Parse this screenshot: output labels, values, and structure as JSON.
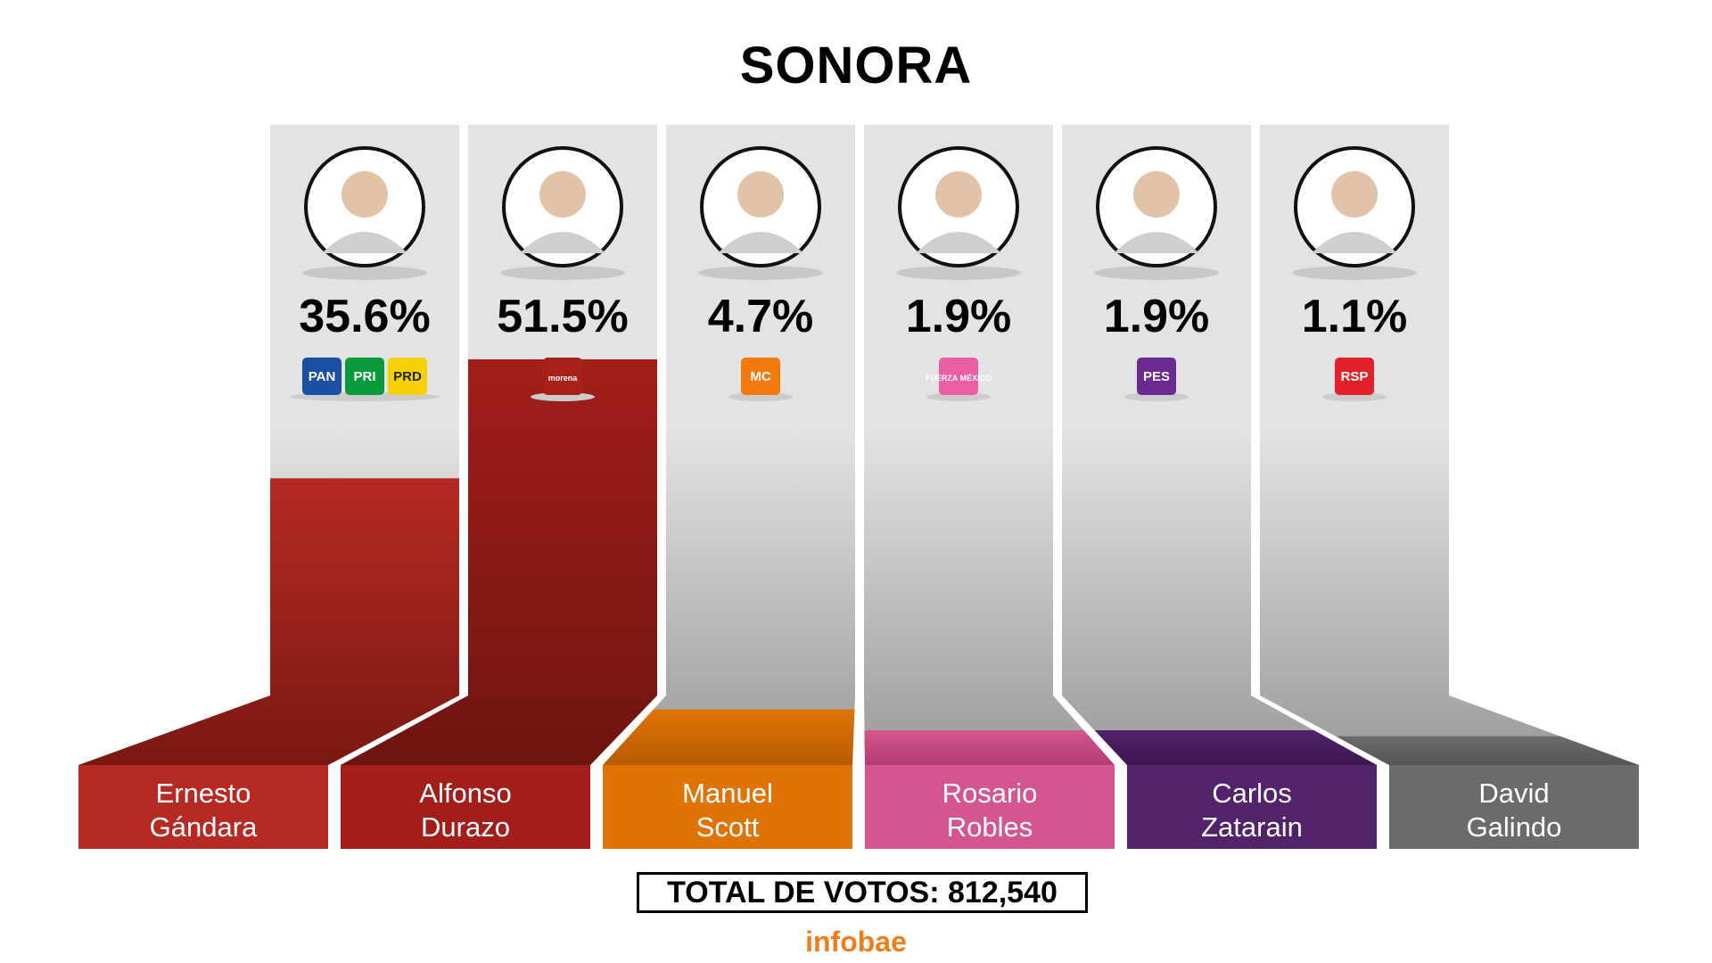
{
  "title": "SONORA",
  "total_label": "TOTAL DE VOTOS: 812,540",
  "brand": "infobae",
  "chart_data": {
    "type": "bar",
    "categories": [
      "Ernesto Gándara",
      "Alfonso Durazo",
      "Manuel Scott",
      "Rosario Robles",
      "Carlos Zatarain",
      "David Galindo"
    ],
    "values": [
      35.6,
      51.5,
      4.7,
      1.9,
      1.9,
      1.1
    ],
    "value_labels": [
      "35.6%",
      "51.5%",
      "4.7%",
      "1.9%",
      "1.9%",
      "1.1%"
    ],
    "ylim": [
      0,
      51.5
    ],
    "candidates": [
      {
        "first": "Ernesto",
        "last": "Gándara",
        "pct": "35.6%",
        "value": 35.6,
        "color": "#b52a22",
        "dark": "#7a1812",
        "parties": [
          {
            "label": "PAN",
            "bg": "#1b4fa3",
            "fg": "#ffffff"
          },
          {
            "label": "PRI",
            "bg": "#0a9a3c",
            "fg": "#ffffff"
          },
          {
            "label": "PRD",
            "bg": "#f6d100",
            "fg": "#222222"
          }
        ]
      },
      {
        "first": "Alfonso",
        "last": "Durazo",
        "pct": "51.5%",
        "value": 51.5,
        "color": "#a31e1a",
        "dark": "#6e1410",
        "parties": [
          {
            "label": "morena",
            "bg": "#a7201a",
            "fg": "#ffffff"
          }
        ]
      },
      {
        "first": "Manuel",
        "last": "Scott",
        "pct": "4.7%",
        "value": 4.7,
        "color": "#e07305",
        "dark": "#b85c02",
        "parties": [
          {
            "label": "MC",
            "bg": "#f47a10",
            "fg": "#ffffff"
          }
        ]
      },
      {
        "first": "Rosario",
        "last": "Robles",
        "pct": "1.9%",
        "value": 1.9,
        "color": "#d4558f",
        "dark": "#b03d73",
        "parties": [
          {
            "label": "FUERZA MÉXICO",
            "bg": "#ec5ea4",
            "fg": "#ffffff"
          }
        ]
      },
      {
        "first": "Carlos",
        "last": "Zatarain",
        "pct": "1.9%",
        "value": 1.9,
        "color": "#52226b",
        "dark": "#3b1650",
        "parties": [
          {
            "label": "PES",
            "bg": "#6a2a8f",
            "fg": "#ffffff"
          }
        ]
      },
      {
        "first": "David",
        "last": "Galindo",
        "pct": "1.1%",
        "value": 1.1,
        "color": "#6b6b6b",
        "dark": "#555555",
        "parties": [
          {
            "label": "RSP",
            "bg": "#e2202a",
            "fg": "#ffffff"
          }
        ]
      }
    ]
  }
}
